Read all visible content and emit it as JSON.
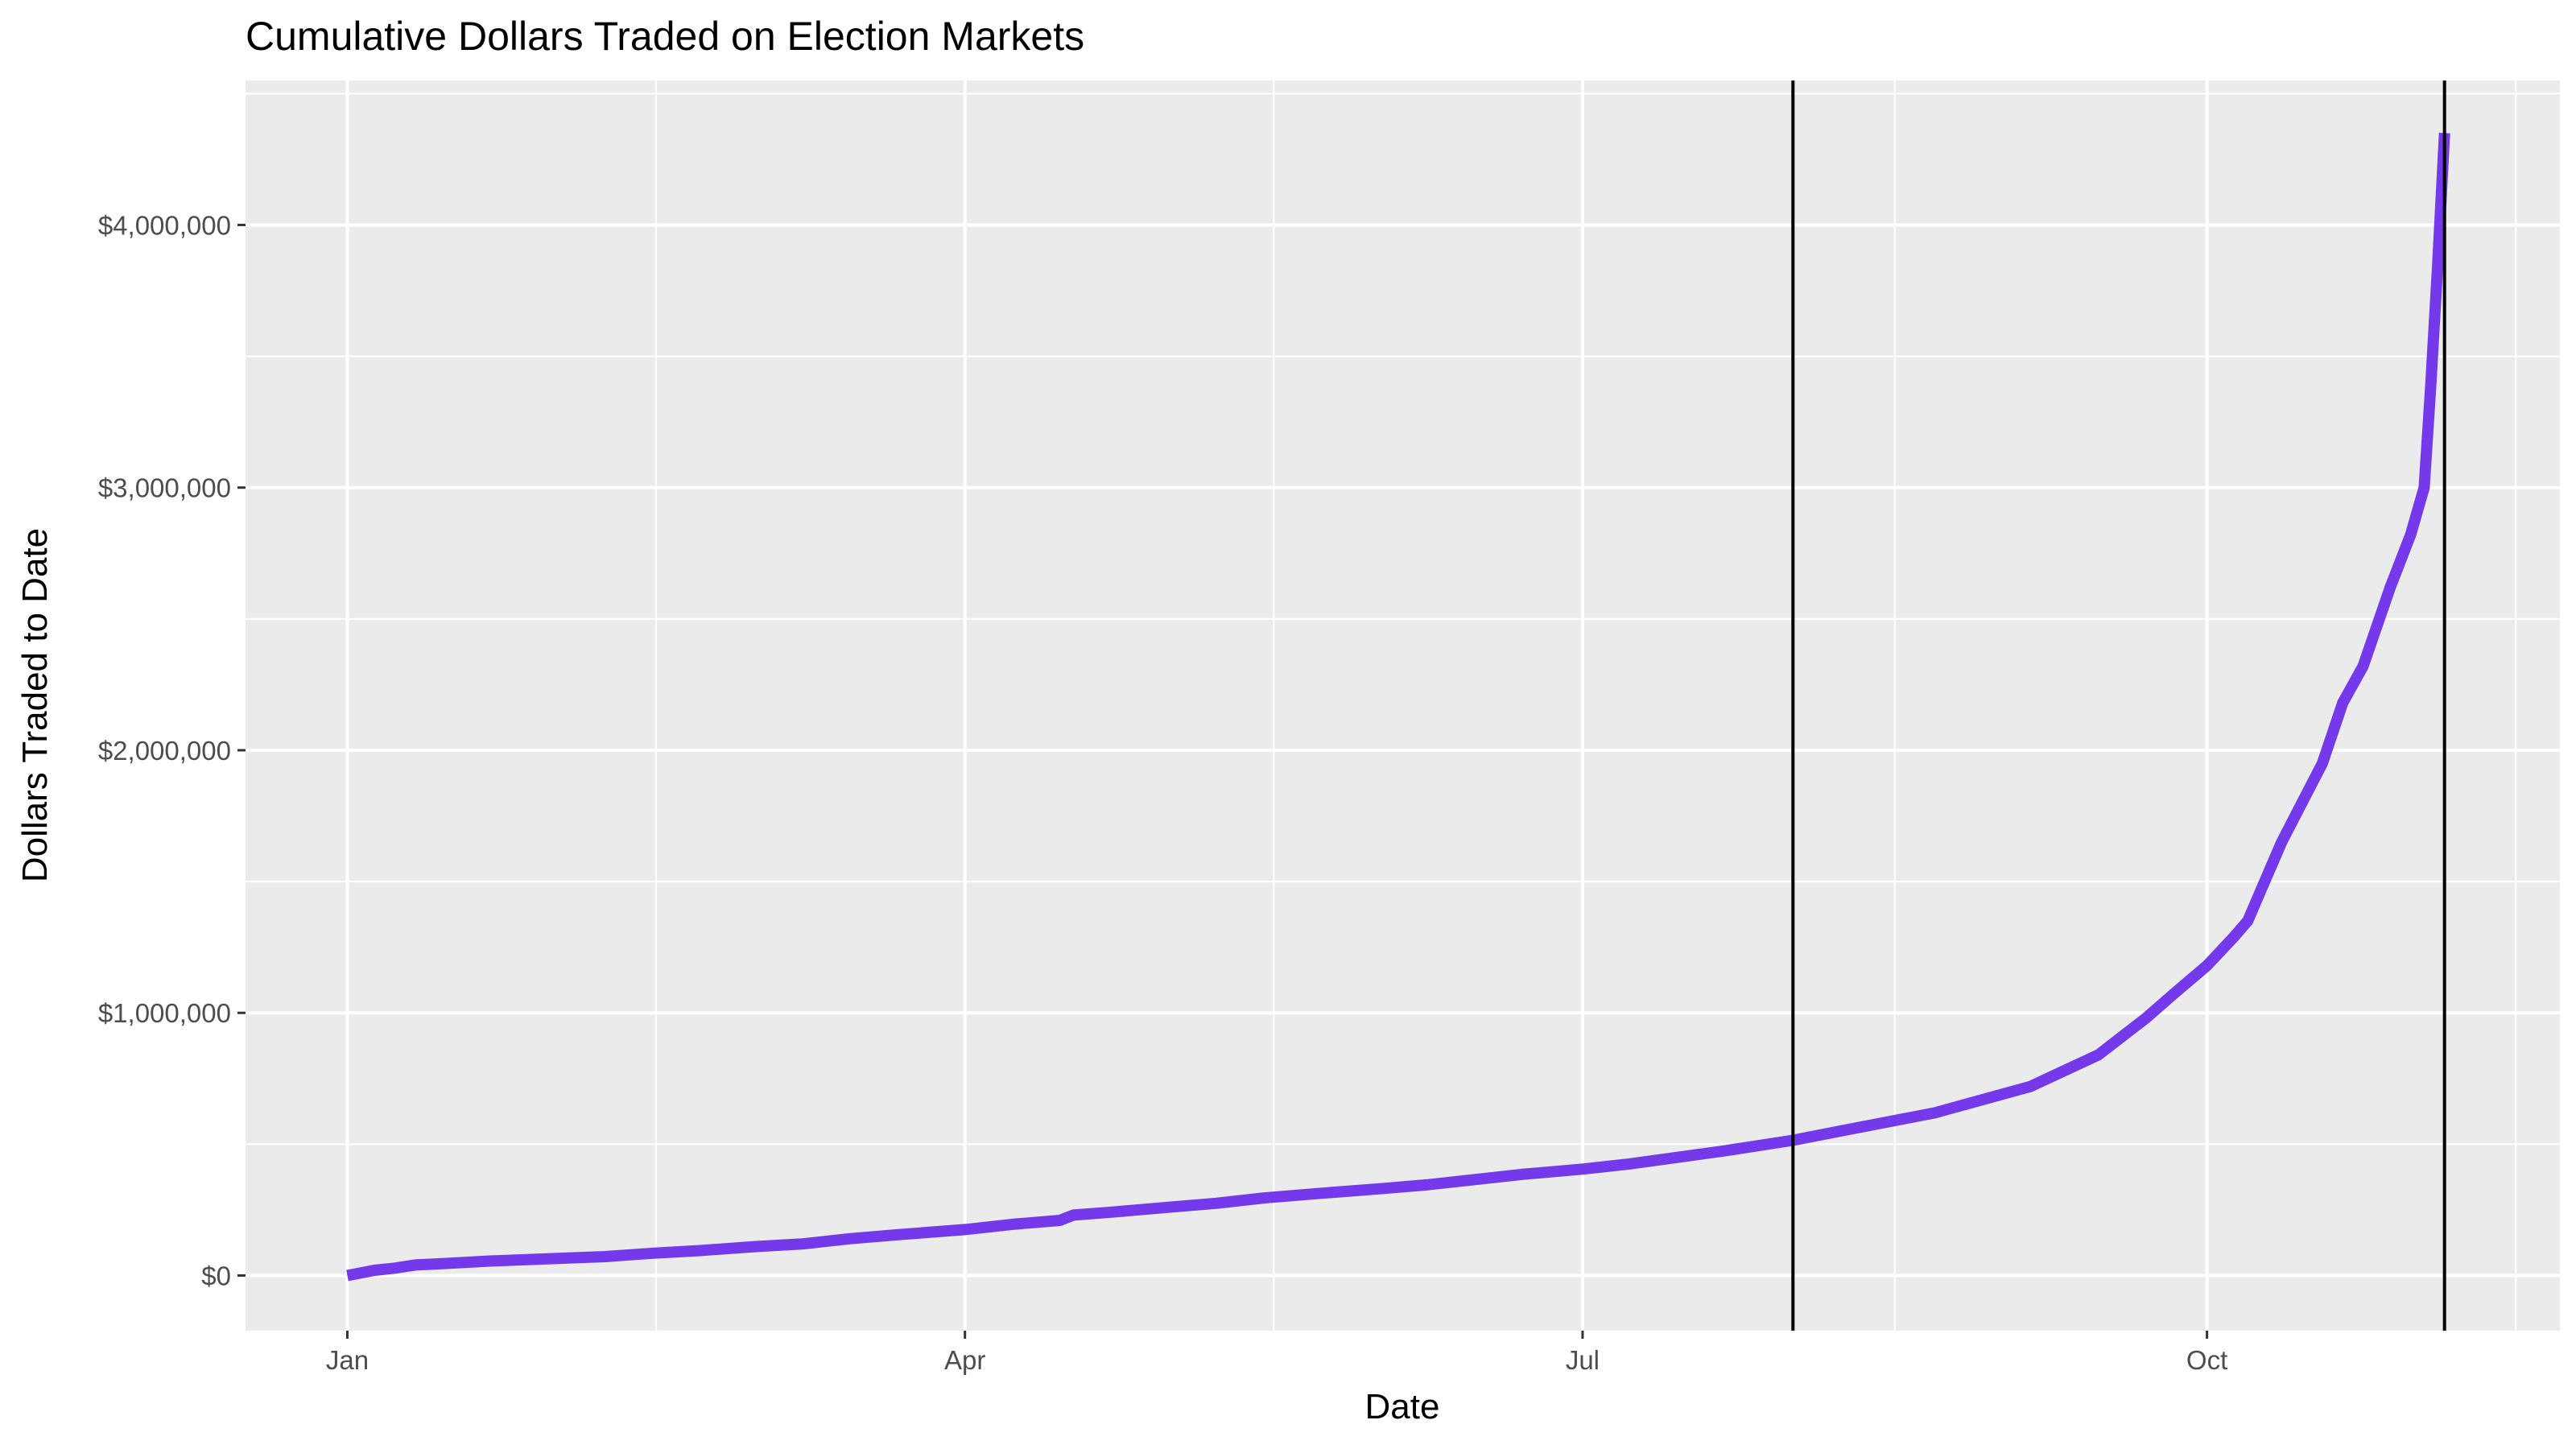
{
  "chart_data": {
    "type": "line",
    "title": "Cumulative Dollars Traded on Election Markets",
    "xlabel": "Date",
    "ylabel": "Dollars Traded to Date",
    "x_ticks": [
      {
        "date": "Jan 1",
        "label": "Jan"
      },
      {
        "date": "Apr 1",
        "label": "Apr"
      },
      {
        "date": "Jul 1",
        "label": "Jul"
      },
      {
        "date": "Oct 1",
        "label": "Oct"
      }
    ],
    "y_ticks": [
      {
        "value": 0,
        "label": "$0"
      },
      {
        "value": 1000000,
        "label": "$1,000,000"
      },
      {
        "value": 2000000,
        "label": "$2,000,000"
      },
      {
        "value": 3000000,
        "label": "$3,000,000"
      },
      {
        "value": 4000000,
        "label": "$4,000,000"
      }
    ],
    "xlim": [
      "Dec 17",
      "Nov 22"
    ],
    "ylim": [
      -210000,
      4550000
    ],
    "vlines": [
      "Aug 1",
      "Nov 5"
    ],
    "grid": true,
    "colors": {
      "line": "#7339eb",
      "panel": "#ebebeb",
      "grid": "#ffffff",
      "vline": "#000000"
    },
    "series": [
      {
        "points": [
          [
            "Jan 1",
            0
          ],
          [
            "Jan 5",
            20000
          ],
          [
            "Jan 8",
            28000
          ],
          [
            "Jan 11",
            40000
          ],
          [
            "Jan 15",
            45000
          ],
          [
            "Jan 22",
            55000
          ],
          [
            "Feb 1",
            65000
          ],
          [
            "Feb 8",
            72000
          ],
          [
            "Feb 15",
            85000
          ],
          [
            "Feb 22",
            95000
          ],
          [
            "Mar 1",
            110000
          ],
          [
            "Mar 8",
            120000
          ],
          [
            "Mar 15",
            140000
          ],
          [
            "Mar 22",
            155000
          ],
          [
            "Apr 1",
            175000
          ],
          [
            "Apr 8",
            195000
          ],
          [
            "Apr 15",
            210000
          ],
          [
            "Apr 17",
            230000
          ],
          [
            "Apr 22",
            240000
          ],
          [
            "May 1",
            260000
          ],
          [
            "May 8",
            275000
          ],
          [
            "May 15",
            295000
          ],
          [
            "May 22",
            310000
          ],
          [
            "Jun 1",
            330000
          ],
          [
            "Jun 8",
            345000
          ],
          [
            "Jun 15",
            365000
          ],
          [
            "Jun 22",
            385000
          ],
          [
            "Jul 1",
            405000
          ],
          [
            "Jul 8",
            425000
          ],
          [
            "Jul 15",
            450000
          ],
          [
            "Jul 22",
            475000
          ],
          [
            "Aug 1",
            515000
          ],
          [
            "Aug 8",
            550000
          ],
          [
            "Aug 15",
            585000
          ],
          [
            "Aug 22",
            620000
          ],
          [
            "Aug 29",
            670000
          ],
          [
            "Sep 5",
            720000
          ],
          [
            "Sep 10",
            780000
          ],
          [
            "Sep 15",
            840000
          ],
          [
            "Sep 19",
            920000
          ],
          [
            "Sep 22",
            980000
          ],
          [
            "Sep 26",
            1070000
          ],
          [
            "Oct 1",
            1180000
          ],
          [
            "Oct 5",
            1290000
          ],
          [
            "Oct 7",
            1350000
          ],
          [
            "Oct 9",
            1470000
          ],
          [
            "Oct 12",
            1650000
          ],
          [
            "Oct 15",
            1800000
          ],
          [
            "Oct 18",
            1950000
          ],
          [
            "Oct 21",
            2180000
          ],
          [
            "Oct 24",
            2320000
          ],
          [
            "Oct 28",
            2620000
          ],
          [
            "Oct 31",
            2820000
          ],
          [
            "Nov 2",
            3000000
          ],
          [
            "Nov 3",
            3400000
          ],
          [
            "Nov 4",
            3850000
          ],
          [
            "Nov 5",
            4350000
          ]
        ]
      }
    ]
  }
}
